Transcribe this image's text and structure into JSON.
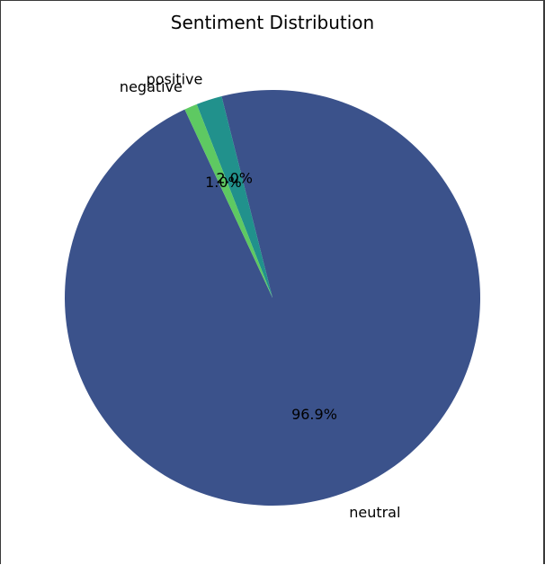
{
  "chart_data": {
    "type": "pie",
    "title": "Sentiment Distribution",
    "categories": [
      "neutral",
      "positive",
      "negative"
    ],
    "values": [
      96.9,
      2.0,
      1.0
    ],
    "percent_labels": [
      "96.9%",
      "2.0%",
      "1.0%"
    ],
    "colors": [
      "#3b528b",
      "#21918c",
      "#5ec962"
    ],
    "start_angle_deg": 115,
    "direction": "counterclockwise"
  }
}
